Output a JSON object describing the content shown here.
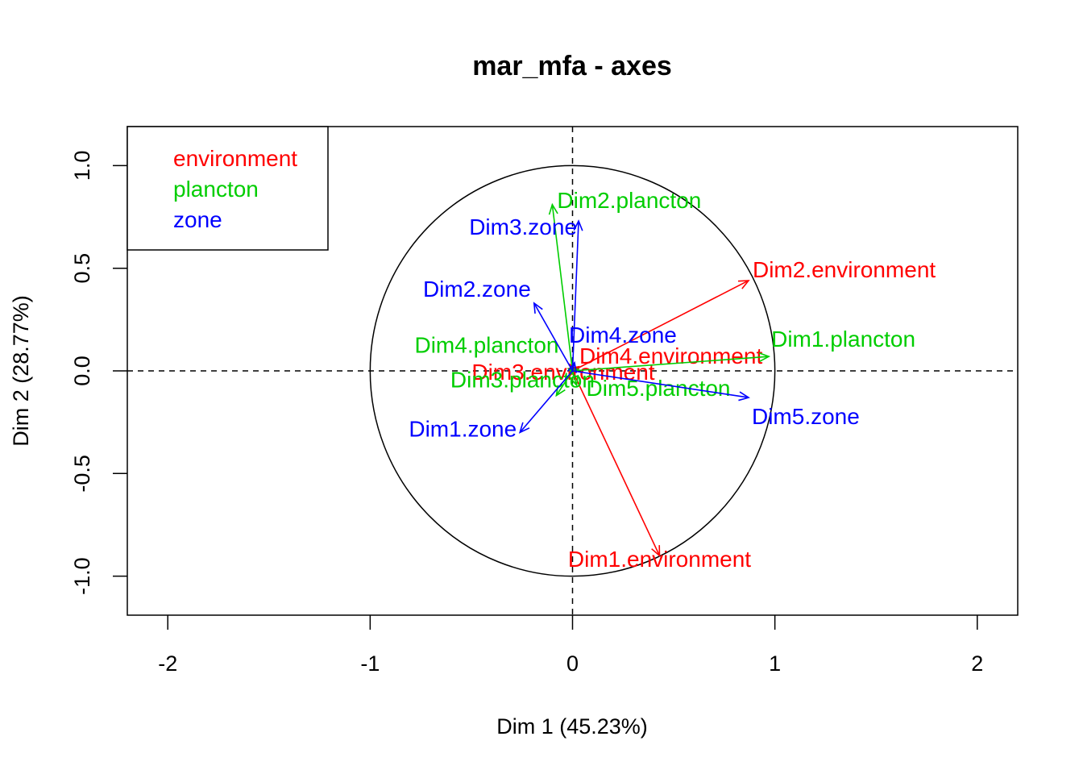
{
  "chart_data": {
    "type": "scatter",
    "title": "mar_mfa - axes",
    "xlabel": "Dim 1 (45.23%)",
    "ylabel": "Dim 2 (28.77%)",
    "xlim": [
      -2.2,
      2.2
    ],
    "ylim": [
      -1.19,
      1.19
    ],
    "xticks": [
      -2,
      -1,
      0,
      1,
      2
    ],
    "yticks": [
      -1.0,
      -0.5,
      0.0,
      0.5,
      1.0
    ],
    "xtick_labels": [
      "-2",
      "-1",
      "0",
      "1",
      "2"
    ],
    "ytick_labels": [
      "-1.0",
      "-0.5",
      "0.0",
      "0.5",
      "1.0"
    ],
    "unit_circle": true,
    "reference_lines": [
      0,
      0
    ],
    "legend": {
      "position": "top-left",
      "entries": [
        {
          "label": "environment",
          "color": "#ff0000"
        },
        {
          "label": "plancton",
          "color": "#00cd00"
        },
        {
          "label": "zone",
          "color": "#0000ff"
        }
      ]
    },
    "series": [
      {
        "name": "environment",
        "color": "#ff0000",
        "points": [
          {
            "label": "Dim1.environment",
            "x": 0.43,
            "y": -0.9
          },
          {
            "label": "Dim2.environment",
            "x": 0.87,
            "y": 0.44
          },
          {
            "label": "Dim3.environment",
            "x": -0.01,
            "y": -0.02
          },
          {
            "label": "Dim4.environment",
            "x": 0.03,
            "y": 0.02
          }
        ]
      },
      {
        "name": "plancton",
        "color": "#00cd00",
        "points": [
          {
            "label": "Dim1.plancton",
            "x": 0.97,
            "y": 0.07
          },
          {
            "label": "Dim2.plancton",
            "x": -0.1,
            "y": 0.81
          },
          {
            "label": "Dim3.plancton",
            "x": -0.08,
            "y": -0.12
          },
          {
            "label": "Dim4.plancton",
            "x": -0.02,
            "y": 0.01
          },
          {
            "label": "Dim5.plancton",
            "x": 0.02,
            "y": -0.07
          }
        ]
      },
      {
        "name": "zone",
        "color": "#0000ff",
        "points": [
          {
            "label": "Dim1.zone",
            "x": -0.26,
            "y": -0.3
          },
          {
            "label": "Dim2.zone",
            "x": -0.19,
            "y": 0.33
          },
          {
            "label": "Dim3.zone",
            "x": 0.03,
            "y": 0.73
          },
          {
            "label": "Dim4.zone",
            "x": 0.01,
            "y": 0.04
          },
          {
            "label": "Dim5.zone",
            "x": 0.87,
            "y": -0.13
          }
        ]
      }
    ]
  }
}
